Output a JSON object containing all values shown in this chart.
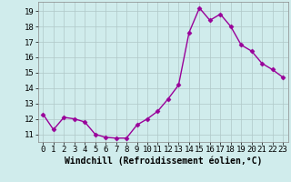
{
  "x": [
    0,
    1,
    2,
    3,
    4,
    5,
    6,
    7,
    8,
    9,
    10,
    11,
    12,
    13,
    14,
    15,
    16,
    17,
    18,
    19,
    20,
    21,
    22,
    23
  ],
  "y": [
    12.3,
    11.3,
    12.1,
    12.0,
    11.8,
    11.0,
    10.8,
    10.75,
    10.75,
    11.6,
    12.0,
    12.5,
    13.3,
    14.2,
    17.6,
    19.2,
    18.4,
    18.8,
    18.0,
    16.8,
    16.4,
    15.6,
    15.2,
    14.7
  ],
  "line_color": "#990099",
  "marker": "D",
  "marker_size": 2.5,
  "line_width": 1.0,
  "bg_color": "#d0ecec",
  "grid_color": "#b0c8c8",
  "xlabel": "Windchill (Refroidissement éolien,°C)",
  "xlabel_fontsize": 7,
  "tick_fontsize": 6.5,
  "ylim": [
    10.5,
    19.6
  ],
  "xlim": [
    -0.5,
    23.5
  ],
  "yticks": [
    11,
    12,
    13,
    14,
    15,
    16,
    17,
    18,
    19
  ],
  "xticks": [
    0,
    1,
    2,
    3,
    4,
    5,
    6,
    7,
    8,
    9,
    10,
    11,
    12,
    13,
    14,
    15,
    16,
    17,
    18,
    19,
    20,
    21,
    22,
    23
  ]
}
